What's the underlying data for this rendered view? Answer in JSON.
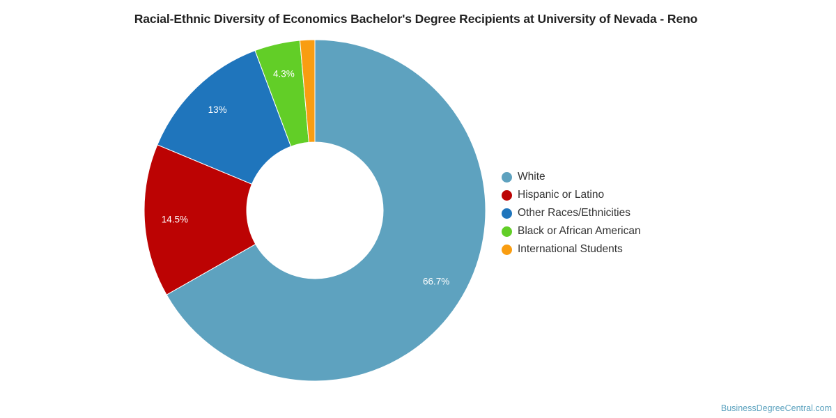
{
  "chart_data": {
    "type": "pie",
    "variant": "donut",
    "title": "Racial-Ethnic Diversity of Economics Bachelor's Degree Recipients at University of Nevada - Reno",
    "legend_position": "right",
    "series": [
      {
        "name": "",
        "slices": [
          {
            "label": "White",
            "value": 66.7,
            "data_label": "66.7%",
            "color": "#5ea2bf"
          },
          {
            "label": "Hispanic or Latino",
            "value": 14.5,
            "data_label": "14.5%",
            "color": "#bc0303"
          },
          {
            "label": "Other Races/Ethnicities",
            "value": 13.0,
            "data_label": "13%",
            "color": "#1f75bc"
          },
          {
            "label": "Black or African American",
            "value": 4.3,
            "data_label": "4.3%",
            "color": "#62ce27"
          },
          {
            "label": "International Students",
            "value": 1.4,
            "data_label": "",
            "color": "#f99d11"
          }
        ]
      }
    ]
  },
  "credit": "BusinessDegreeCentral.com"
}
